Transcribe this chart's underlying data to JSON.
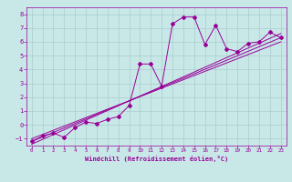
{
  "xlabel": "Windchill (Refroidissement éolien,°C)",
  "ylabel": "",
  "bg_color": "#c8e8e8",
  "line_color": "#990099",
  "grid_color": "#aacccc",
  "xlim": [
    -0.5,
    23.5
  ],
  "ylim": [
    -1.5,
    8.5
  ],
  "xticks": [
    0,
    1,
    2,
    3,
    4,
    5,
    6,
    7,
    8,
    9,
    10,
    11,
    12,
    13,
    14,
    15,
    16,
    17,
    18,
    19,
    20,
    21,
    22,
    23
  ],
  "yticks": [
    -1,
    0,
    1,
    2,
    3,
    4,
    5,
    6,
    7,
    8
  ],
  "data_x": [
    0,
    1,
    2,
    3,
    4,
    5,
    6,
    7,
    8,
    9,
    10,
    11,
    12,
    13,
    14,
    15,
    16,
    17,
    18,
    19,
    20,
    21,
    22,
    23
  ],
  "data_y": [
    -1.2,
    -0.8,
    -0.6,
    -0.9,
    -0.2,
    0.2,
    0.1,
    0.4,
    0.6,
    1.4,
    4.4,
    4.4,
    2.8,
    7.3,
    7.8,
    7.8,
    5.8,
    7.2,
    5.5,
    5.3,
    5.9,
    6.0,
    6.7,
    6.3
  ],
  "line1_x": [
    0,
    23
  ],
  "line1_y": [
    -1.2,
    6.3
  ],
  "line2_x": [
    0,
    23
  ],
  "line2_y": [
    -1.0,
    6.0
  ],
  "line3_x": [
    0,
    23
  ],
  "line3_y": [
    -1.4,
    6.6
  ]
}
